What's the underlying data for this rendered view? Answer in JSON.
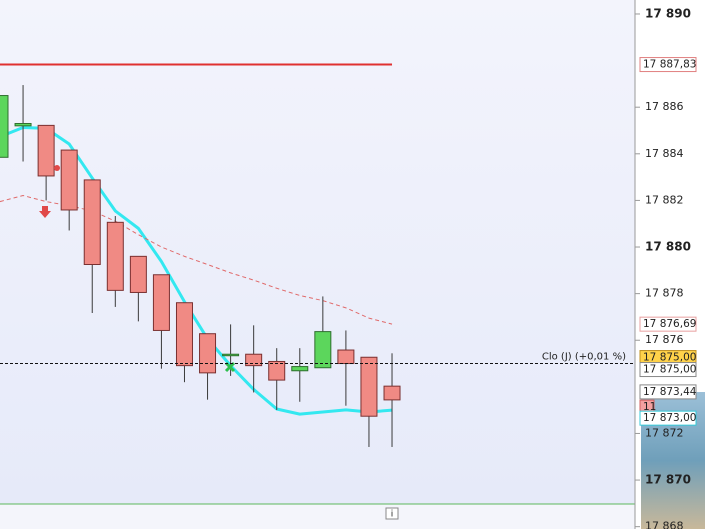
{
  "chart_data": {
    "type": "candlestick",
    "candles": {
      "open": [
        17883.85,
        17885.2,
        17885.22,
        17884.16,
        17882.88,
        17881.06,
        17879.6,
        17878.81,
        17877.61,
        17876.28,
        17875.4,
        17875.4,
        17875.09,
        17874.69,
        17874.82,
        17875.58,
        17875.27,
        17874.03
      ],
      "high": [
        17886.5,
        17886.95,
        17885.22,
        17884.16,
        17882.88,
        17881.33,
        17879.6,
        17878.81,
        17877.61,
        17876.28,
        17876.68,
        17876.64,
        17875.66,
        17875.66,
        17877.88,
        17876.42,
        17875.27,
        17875.44
      ],
      "low": [
        17883.85,
        17883.67,
        17882.0,
        17880.71,
        17877.17,
        17877.43,
        17876.81,
        17874.78,
        17874.2,
        17873.45,
        17874.47,
        17873.76,
        17873.01,
        17873.36,
        17874.82,
        17873.19,
        17871.42,
        17871.42
      ],
      "close": [
        17886.5,
        17885.3,
        17883.05,
        17881.59,
        17879.25,
        17878.14,
        17878.05,
        17876.42,
        17874.91,
        17874.6,
        17875.4,
        17874.91,
        17874.29,
        17874.87,
        17876.37,
        17875.0,
        17872.74,
        17873.44
      ],
      "up_color": "#5cd65c",
      "down_color": "#f08a84"
    },
    "lines": [
      {
        "color": "#33e8f0",
        "values": [
          17884.73,
          17885.13,
          17885.09,
          17884.42,
          17882.96,
          17881.55,
          17880.8,
          17879.38,
          17877.65,
          17876.06,
          17874.91,
          17873.89,
          17873.05,
          17872.83,
          17872.92,
          17873.01,
          17872.92,
          17873.0
        ]
      },
      {
        "color": "#e06a6a",
        "dashed": true,
        "values": [
          17881.95,
          17882.21,
          17881.95,
          17881.77,
          17881.55,
          17881.11,
          17880.53,
          17880.0,
          17879.6,
          17879.25,
          17878.89,
          17878.58,
          17878.23,
          17877.92,
          17877.7,
          17877.39,
          17876.95,
          17876.69
        ]
      }
    ],
    "level": {
      "value": 17887.83,
      "color": "#e03030"
    },
    "reference_line": {
      "value": 17875,
      "label": "Clo (J) (+0,01 %)"
    },
    "price_labels": [
      {
        "value": 17887.83,
        "label": "17 887,83",
        "color": "#c83030",
        "bg": "#ffffff",
        "border": "#e08080"
      },
      {
        "value": 17876.69,
        "label": "17 876,69",
        "color": "#d06060",
        "bg": "#ffffff",
        "border": "#e8a0a0"
      },
      {
        "value": 17875,
        "label": "17 875,00",
        "color": "#222222",
        "bg": "#ffd24a",
        "border": "#c09020"
      },
      {
        "value": 17875,
        "label": "17 875,00",
        "color": "#222222",
        "bg": "#ffffff",
        "border": "#888888"
      },
      {
        "value": 17873.44,
        "label": "17 873,44",
        "color": "#222222",
        "bg": "#ffffff",
        "border": "#888888"
      },
      {
        "value": 11,
        "label": "11",
        "color": "#222222",
        "bg": "#f4a0a0",
        "border": "#d06060"
      },
      {
        "value": 17873,
        "label": "17 873,00",
        "color": "#1a9aaa",
        "bg": "#ffffff",
        "border": "#33c8d8"
      }
    ],
    "info_icon": "i",
    "ylim": [
      17867.9,
      17890.6
    ],
    "yticks": [
      {
        "value": 17890,
        "label": "17 890"
      },
      {
        "value": 17886,
        "label": "17 886"
      },
      {
        "value": 17884,
        "label": "17 884"
      },
      {
        "value": 17882,
        "label": "17 882"
      },
      {
        "value": 17880,
        "label": "17 880"
      },
      {
        "value": 17878,
        "label": "17 878"
      },
      {
        "value": 17876,
        "label": "17 876"
      },
      {
        "value": 17872,
        "label": "17 872"
      },
      {
        "value": 17870,
        "label": "17 870"
      },
      {
        "value": 17868,
        "label": "17 868"
      }
    ]
  }
}
